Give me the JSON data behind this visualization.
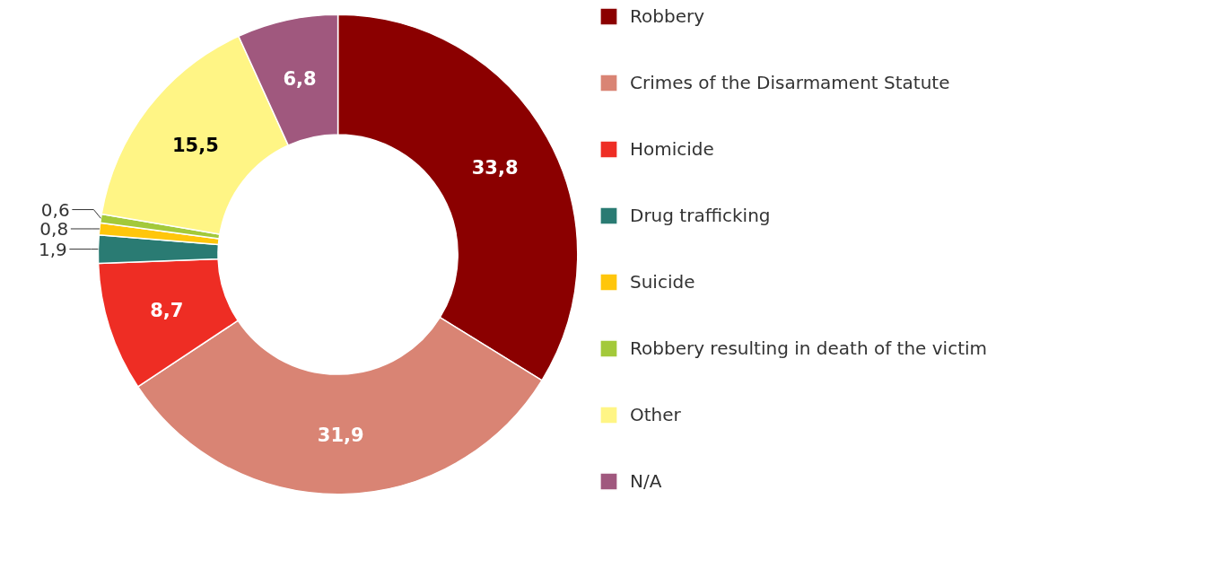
{
  "chart_data": {
    "type": "donut",
    "categories": [
      "Robbery",
      "Crimes of the Disarmament Statute",
      "Homicide",
      "Drug trafficking",
      "Suicide",
      "Robbery resulting in death of the victim",
      "Other",
      "N/A"
    ],
    "values": [
      33.8,
      31.9,
      8.7,
      1.9,
      0.8,
      0.6,
      15.5,
      6.8
    ],
    "colors": [
      "#8b0000",
      "#d98474",
      "#ee2d24",
      "#2a7b73",
      "#ffc60b",
      "#a3c93a",
      "#fff585",
      "#a0587e"
    ],
    "value_labels": [
      "33,8",
      "31,9",
      "8,7",
      "1,9",
      "0,8",
      "0,6",
      "15,5",
      "6,8"
    ],
    "legend": "right"
  }
}
